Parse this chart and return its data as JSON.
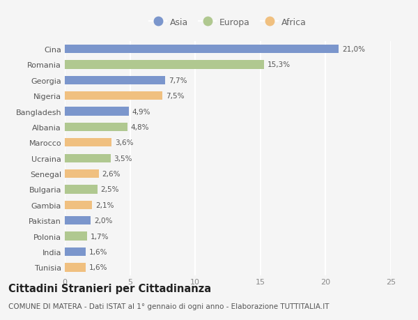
{
  "countries": [
    "Cina",
    "Romania",
    "Georgia",
    "Nigeria",
    "Bangladesh",
    "Albania",
    "Marocco",
    "Ucraina",
    "Senegal",
    "Bulgaria",
    "Gambia",
    "Pakistan",
    "Polonia",
    "India",
    "Tunisia"
  ],
  "values": [
    21.0,
    15.3,
    7.7,
    7.5,
    4.9,
    4.8,
    3.6,
    3.5,
    2.6,
    2.5,
    2.1,
    2.0,
    1.7,
    1.6,
    1.6
  ],
  "labels": [
    "21,0%",
    "15,3%",
    "7,7%",
    "7,5%",
    "4,9%",
    "4,8%",
    "3,6%",
    "3,5%",
    "2,6%",
    "2,5%",
    "2,1%",
    "2,0%",
    "1,7%",
    "1,6%",
    "1,6%"
  ],
  "continents": [
    "Asia",
    "Europa",
    "Asia",
    "Africa",
    "Asia",
    "Europa",
    "Africa",
    "Europa",
    "Africa",
    "Europa",
    "Africa",
    "Asia",
    "Europa",
    "Asia",
    "Africa"
  ],
  "colors": {
    "Asia": "#7b96cc",
    "Europa": "#b0c890",
    "Africa": "#f0c080"
  },
  "legend_labels": [
    "Asia",
    "Europa",
    "Africa"
  ],
  "xlim": [
    0,
    25
  ],
  "xticks": [
    0,
    5,
    10,
    15,
    20,
    25
  ],
  "title": "Cittadini Stranieri per Cittadinanza",
  "subtitle": "COMUNE DI MATERA - Dati ISTAT al 1° gennaio di ogni anno - Elaborazione TUTTITALIA.IT",
  "bg_color": "#f5f5f5",
  "grid_color": "#e0e0e0",
  "bar_height": 0.55,
  "title_fontsize": 10.5,
  "subtitle_fontsize": 7.5,
  "label_fontsize": 7.5,
  "ytick_fontsize": 8,
  "xtick_fontsize": 8,
  "legend_fontsize": 9
}
